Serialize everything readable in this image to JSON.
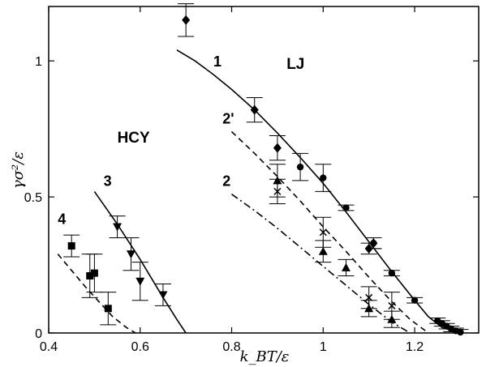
{
  "chart_data": {
    "type": "scatter",
    "title": "",
    "xlabel": "k_BT/ε",
    "ylabel": "γσ²/ε",
    "xlim": [
      0.4,
      1.34
    ],
    "ylim": [
      0,
      1.2
    ],
    "x_ticks": [
      0.4,
      0.6,
      0.8,
      1.0,
      1.2
    ],
    "x_tick_labels": [
      "0.4",
      "0.6",
      "0.8",
      "1",
      "1.2"
    ],
    "y_ticks": [
      0,
      0.5,
      1.0
    ],
    "y_tick_labels": [
      "0",
      "0.5",
      "1"
    ],
    "grid": false,
    "legend": "none",
    "group_labels": [
      {
        "text": "LJ",
        "x": 0.92,
        "y": 0.97
      },
      {
        "text": "HCY",
        "x": 0.55,
        "y": 0.7
      }
    ],
    "curve_labels": [
      {
        "text": "1",
        "x": 0.76,
        "y": 0.98
      },
      {
        "text": "2'",
        "x": 0.78,
        "y": 0.77
      },
      {
        "text": "2",
        "x": 0.78,
        "y": 0.54
      },
      {
        "text": "3",
        "x": 0.52,
        "y": 0.54
      },
      {
        "text": "4",
        "x": 0.42,
        "y": 0.4
      }
    ],
    "curves": [
      {
        "id": "1",
        "style": "solid",
        "points": [
          [
            0.68,
            1.04
          ],
          [
            0.72,
            1.0
          ],
          [
            0.76,
            0.95
          ],
          [
            0.8,
            0.895
          ],
          [
            0.85,
            0.82
          ],
          [
            0.9,
            0.735
          ],
          [
            0.95,
            0.645
          ],
          [
            1.0,
            0.55
          ],
          [
            1.05,
            0.445
          ],
          [
            1.1,
            0.335
          ],
          [
            1.15,
            0.225
          ],
          [
            1.2,
            0.12
          ],
          [
            1.23,
            0.06
          ],
          [
            1.26,
            0.02
          ],
          [
            1.3,
            0.0
          ]
        ]
      },
      {
        "id": "2'",
        "style": "dashed",
        "points": [
          [
            0.8,
            0.74
          ],
          [
            0.85,
            0.66
          ],
          [
            0.9,
            0.575
          ],
          [
            0.95,
            0.485
          ],
          [
            1.0,
            0.39
          ],
          [
            1.05,
            0.3
          ],
          [
            1.1,
            0.205
          ],
          [
            1.15,
            0.115
          ],
          [
            1.19,
            0.05
          ],
          [
            1.23,
            0.0
          ]
        ]
      },
      {
        "id": "2",
        "style": "dashdot",
        "points": [
          [
            0.8,
            0.51
          ],
          [
            0.85,
            0.45
          ],
          [
            0.9,
            0.385
          ],
          [
            0.95,
            0.315
          ],
          [
            1.0,
            0.245
          ],
          [
            1.05,
            0.175
          ],
          [
            1.1,
            0.105
          ],
          [
            1.15,
            0.04
          ],
          [
            1.19,
            0.0
          ]
        ]
      },
      {
        "id": "3",
        "style": "solid",
        "points": [
          [
            0.5,
            0.52
          ],
          [
            0.55,
            0.4
          ],
          [
            0.6,
            0.27
          ],
          [
            0.65,
            0.13
          ],
          [
            0.68,
            0.05
          ],
          [
            0.7,
            0.0
          ]
        ]
      },
      {
        "id": "4",
        "style": "dashed",
        "points": [
          [
            0.42,
            0.29
          ],
          [
            0.45,
            0.23
          ],
          [
            0.48,
            0.17
          ],
          [
            0.51,
            0.115
          ],
          [
            0.54,
            0.06
          ],
          [
            0.57,
            0.02
          ],
          [
            0.59,
            0.0
          ]
        ]
      }
    ],
    "series": [
      {
        "marker": "diamond",
        "points": [
          [
            0.7,
            1.15,
            0.06
          ],
          [
            0.85,
            0.82,
            0.045
          ],
          [
            0.9,
            0.68,
            0.045
          ],
          [
            1.1,
            0.31,
            0.02
          ],
          [
            1.11,
            0.33,
            0.02
          ]
        ]
      },
      {
        "marker": "circle",
        "points": [
          [
            0.95,
            0.61,
            0.05
          ],
          [
            1.0,
            0.57,
            0.05
          ],
          [
            1.05,
            0.46,
            0.01
          ],
          [
            1.11,
            0.33,
            0.02
          ],
          [
            1.15,
            0.22,
            0.01
          ],
          [
            1.2,
            0.12,
            0.01
          ],
          [
            1.25,
            0.045,
            0.01
          ],
          [
            1.26,
            0.035,
            0.01
          ],
          [
            1.27,
            0.025,
            0.01
          ],
          [
            1.28,
            0.015,
            0.01
          ],
          [
            1.29,
            0.008,
            0.01
          ],
          [
            1.3,
            0.003,
            0.01
          ]
        ]
      },
      {
        "marker": "triangle-up",
        "points": [
          [
            0.9,
            0.56,
            0.06
          ],
          [
            1.0,
            0.3,
            0.04
          ],
          [
            1.05,
            0.24,
            0.03
          ],
          [
            1.1,
            0.09,
            0.03
          ],
          [
            1.15,
            0.05,
            0.03
          ]
        ]
      },
      {
        "marker": "cross",
        "points": [
          [
            0.9,
            0.52,
            0.045
          ],
          [
            1.0,
            0.37,
            0.055
          ],
          [
            1.1,
            0.13,
            0.04
          ],
          [
            1.15,
            0.1,
            0.05
          ]
        ]
      },
      {
        "marker": "triangle-down",
        "points": [
          [
            0.55,
            0.39,
            0.04
          ],
          [
            0.58,
            0.29,
            0.06
          ],
          [
            0.6,
            0.19,
            0.07
          ],
          [
            0.65,
            0.14,
            0.04
          ]
        ]
      },
      {
        "marker": "square",
        "points": [
          [
            0.45,
            0.32,
            0.04
          ],
          [
            0.49,
            0.21,
            0.08
          ],
          [
            0.5,
            0.22,
            0.07
          ],
          [
            0.53,
            0.09,
            0.06
          ]
        ]
      }
    ]
  }
}
